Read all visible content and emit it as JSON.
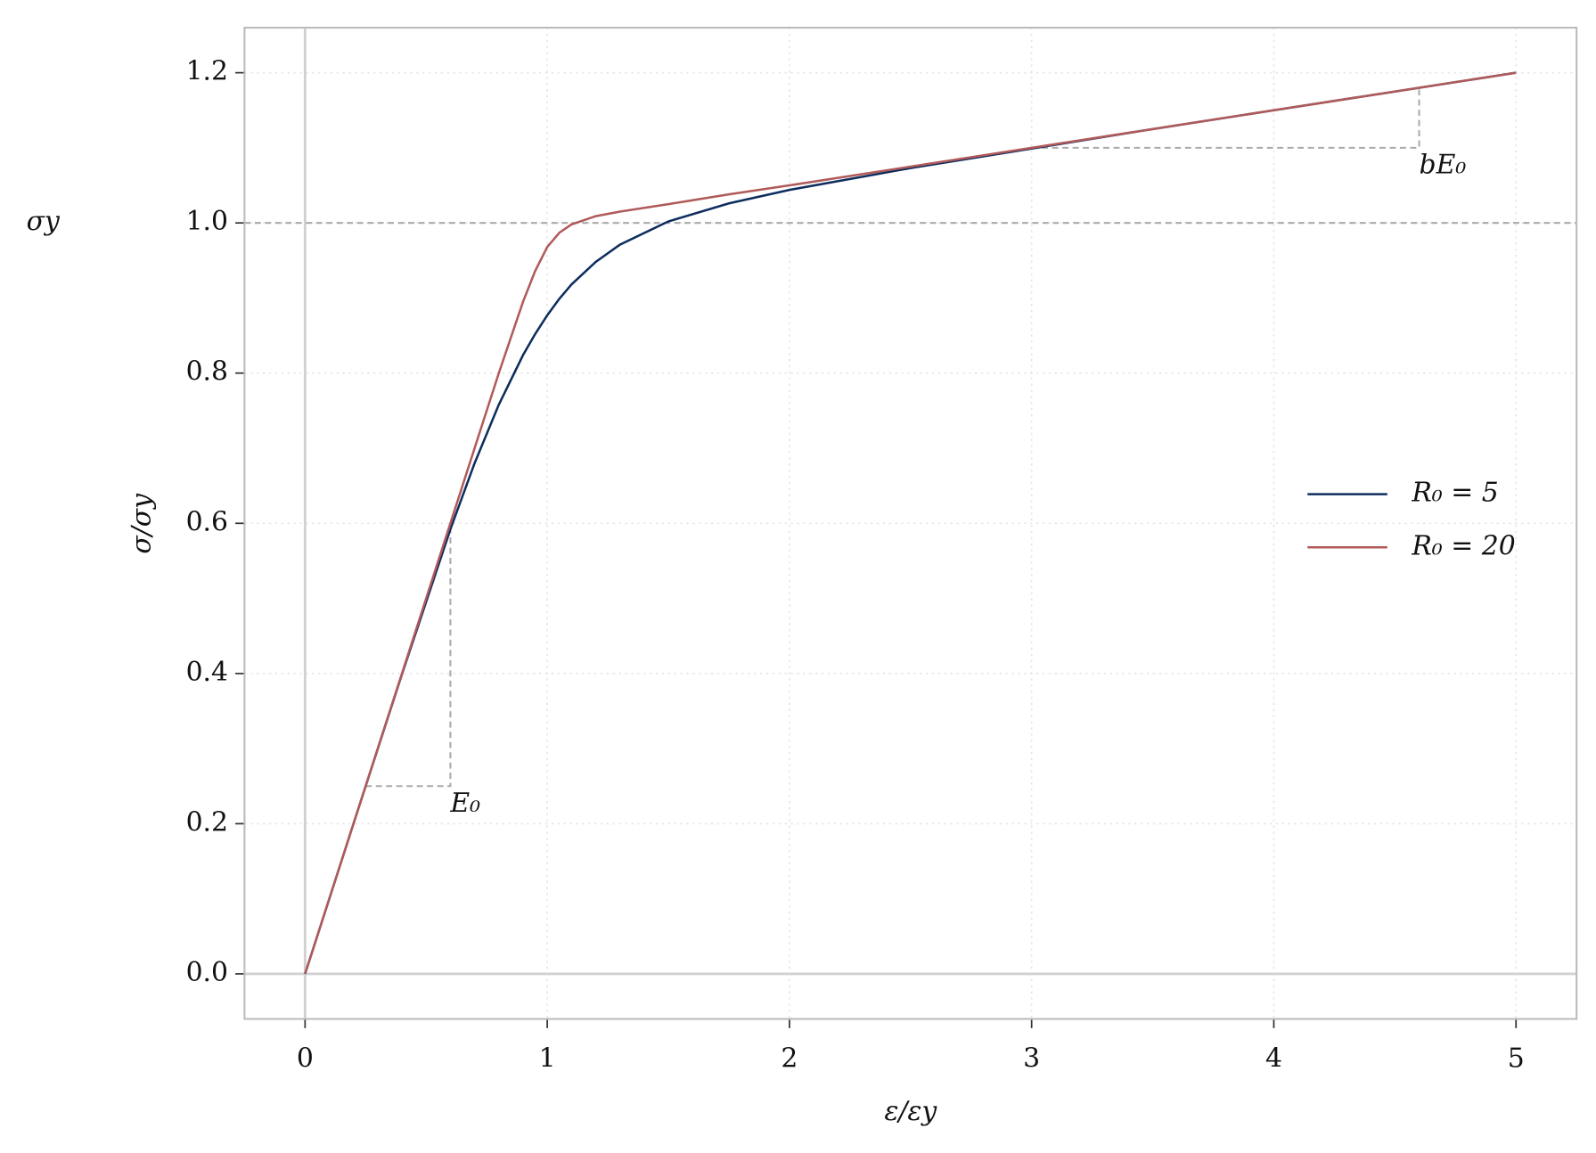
{
  "chart_data": {
    "type": "line",
    "x_label": "ε/εy",
    "y_label": "σ/σy",
    "x": [
      0,
      0.2,
      0.4,
      0.6,
      0.7,
      0.8,
      0.9,
      0.95,
      1.0,
      1.05,
      1.1,
      1.2,
      1.3,
      1.5,
      1.75,
      2,
      2.5,
      3,
      3.5,
      4,
      4.5,
      5
    ],
    "series": [
      {
        "name": "R₀ = 5",
        "color": "#0d2d5e",
        "values": [
          0,
          0.2,
          0.399,
          0.592,
          0.68,
          0.758,
          0.824,
          0.852,
          0.877,
          0.899,
          0.918,
          0.948,
          0.971,
          1.002,
          1.026,
          1.044,
          1.073,
          1.099,
          1.125,
          1.15,
          1.175,
          1.2
        ]
      },
      {
        "name": "R₀ = 20",
        "color": "#b05a5a",
        "values": [
          0,
          0.2,
          0.4,
          0.6,
          0.7,
          0.8,
          0.895,
          0.936,
          0.968,
          0.987,
          0.998,
          1.009,
          1.015,
          1.025,
          1.038,
          1.05,
          1.075,
          1.1,
          1.125,
          1.15,
          1.175,
          1.2
        ]
      }
    ],
    "xlim": [
      -0.25,
      5.25
    ],
    "ylim": [
      -0.06,
      1.26
    ],
    "xticks": [
      0,
      1,
      2,
      3,
      4,
      5
    ],
    "yticks": [
      {
        "value": 0,
        "label": "0.0"
      },
      0.2,
      0.4,
      0.6,
      0.8,
      {
        "value": 1,
        "label": "1.0"
      },
      1.2
    ],
    "grid": true,
    "legend": "right",
    "reference_line": {
      "y": 1,
      "label": "σy"
    },
    "slope_guides": [
      {
        "x": [
          0.25,
          0.6
        ],
        "y": [
          0.25,
          0.6
        ],
        "label": "E₀"
      },
      {
        "x": [
          3,
          4.6
        ],
        "y": [
          1.1,
          1.18
        ],
        "label": "bE₀"
      }
    ]
  }
}
